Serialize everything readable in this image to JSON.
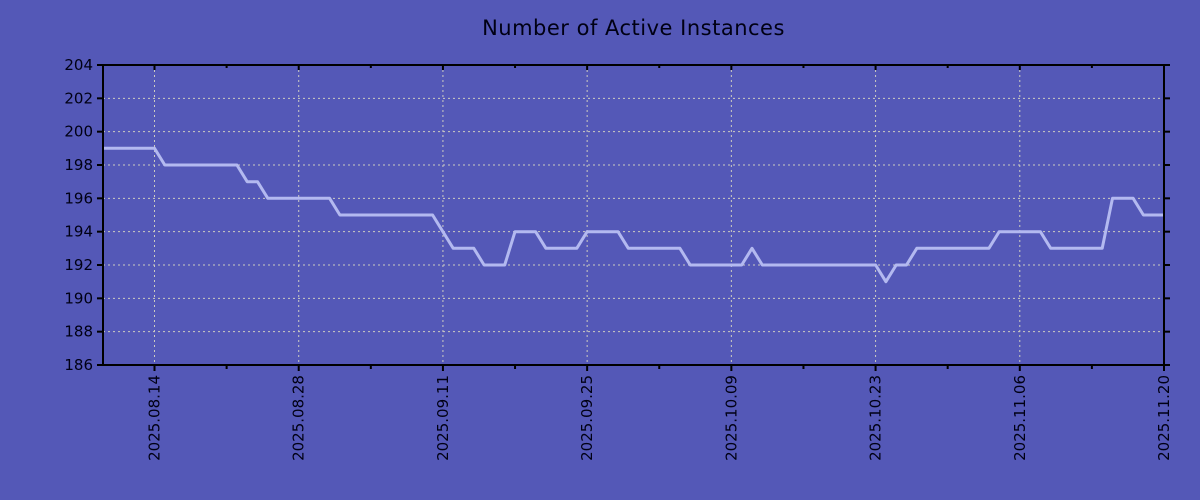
{
  "colors": {
    "background": "#5458b7",
    "line": "#b3b9f0",
    "grid": "#cdccc2",
    "axis": "#000000",
    "text": "#000014"
  },
  "chart_data": {
    "type": "line",
    "title": "Number of Active Instances",
    "xlabel": "",
    "ylabel": "",
    "grid": true,
    "legend": "none",
    "ylim": [
      186,
      204
    ],
    "y_ticks": [
      186,
      188,
      190,
      192,
      194,
      196,
      198,
      200,
      202,
      204
    ],
    "x_tick_labels": [
      "2025.08.14",
      "2025.08.28",
      "2025.09.11",
      "2025.09.25",
      "2025.10.09",
      "2025.10.23",
      "2025.11.06",
      "2025.11.20"
    ],
    "x_tick_day_offsets": [
      5,
      19,
      33,
      47,
      61,
      75,
      89,
      103
    ],
    "x_minor_tick_day_offsets": [
      12,
      26,
      40,
      54,
      68,
      82,
      96
    ],
    "series_start_date": "2025.08.09",
    "x_range_days": 103,
    "values": [
      199,
      199,
      199,
      199,
      199,
      199,
      198,
      198,
      198,
      198,
      198,
      198,
      198,
      198,
      197,
      197,
      196,
      196,
      196,
      196,
      196,
      196,
      196,
      195,
      195,
      195,
      195,
      195,
      195,
      195,
      195,
      195,
      195,
      194,
      193,
      193,
      193,
      192,
      192,
      192,
      194,
      194,
      194,
      193,
      193,
      193,
      193,
      194,
      194,
      194,
      194,
      193,
      193,
      193,
      193,
      193,
      193,
      192,
      192,
      192,
      192,
      192,
      192,
      193,
      192,
      192,
      192,
      192,
      192,
      192,
      192,
      192,
      192,
      192,
      192,
      192,
      191,
      192,
      192,
      193,
      193,
      193,
      193,
      193,
      193,
      193,
      193,
      194,
      194,
      194,
      194,
      194,
      193,
      193,
      193,
      193,
      193,
      193,
      196,
      196,
      196,
      195,
      195,
      195
    ]
  }
}
